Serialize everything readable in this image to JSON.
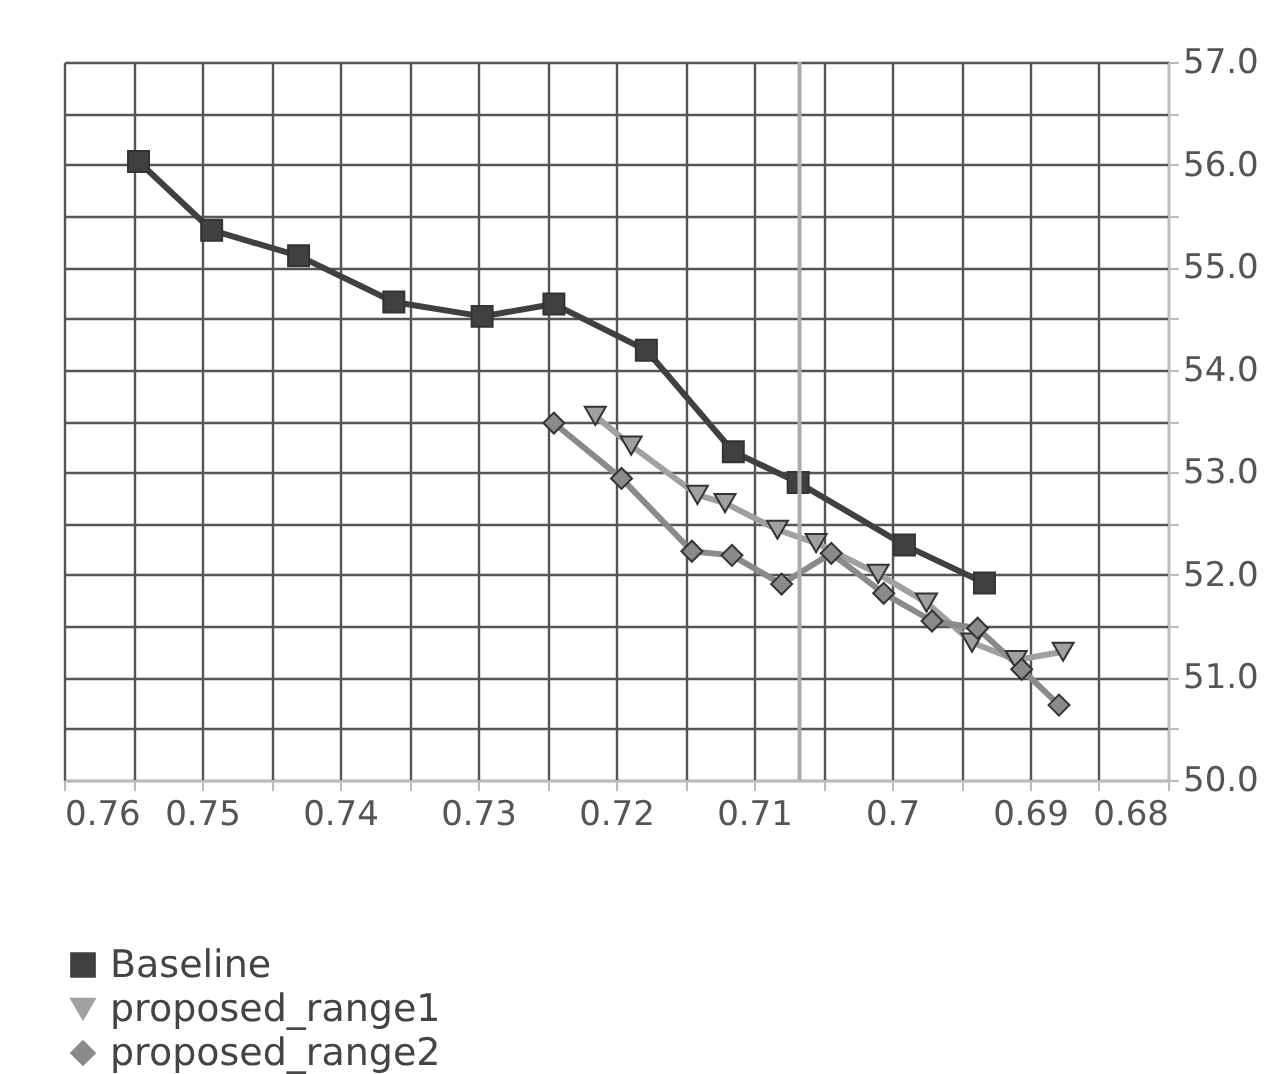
{
  "chart_data": {
    "type": "line",
    "xlim": [
      0.76,
      0.68
    ],
    "xticks": [
      0.76,
      {
        "value": 0.755,
        "label": null
      },
      0.75,
      {
        "value": 0.745,
        "label": null
      },
      0.74,
      {
        "value": 0.735,
        "label": null
      },
      0.73,
      {
        "value": 0.725,
        "label": null
      },
      0.72,
      {
        "value": 0.715,
        "label": null
      },
      0.71,
      {
        "value": 0.705,
        "label": null
      },
      0.7,
      {
        "value": 0.695,
        "label": null
      },
      0.69,
      {
        "value": 0.685,
        "label": null
      },
      0.68
    ],
    "ylim": [
      50,
      57
    ],
    "yticks": [
      {
        "value": 50,
        "label": "50.0"
      },
      {
        "value": 50.5,
        "label": null
      },
      {
        "value": 51,
        "label": "51.0"
      },
      {
        "value": 51.5,
        "label": null
      },
      {
        "value": 52,
        "label": "52.0"
      },
      {
        "value": 52.5,
        "label": null
      },
      {
        "value": 53,
        "label": "53.0"
      },
      {
        "value": 53.5,
        "label": null
      },
      {
        "value": 54,
        "label": "54.0"
      },
      {
        "value": 54.5,
        "label": null
      },
      {
        "value": 55,
        "label": "55.0"
      },
      {
        "value": 55.5,
        "label": null
      },
      {
        "value": 56,
        "label": "56.0"
      },
      {
        "value": 56.5,
        "label": null
      },
      {
        "value": 57,
        "label": "57.0"
      }
    ],
    "grid": true,
    "legend": "bottom",
    "ref_lines": [
      {
        "axis": "x",
        "value": 0.7067,
        "color": "#aaaaaa"
      }
    ],
    "series": [
      {
        "name": "Baseline",
        "color": "#404040",
        "marker": "square",
        "x": [
          0.7546,
          0.7493,
          0.743,
          0.7361,
          0.7297,
          0.7245,
          0.7178,
          0.7115,
          0.7068,
          0.6991,
          0.6933
        ],
        "values": [
          56.03,
          55.36,
          55.11,
          54.66,
          54.52,
          54.64,
          54.19,
          53.2,
          52.9,
          52.29,
          51.92
        ]
      },
      {
        "name": "proposed_range1",
        "color": "#a0a0a0",
        "marker": "triangle",
        "x": [
          0.7215,
          0.7189,
          0.7141,
          0.7121,
          0.7083,
          0.7055,
          0.701,
          0.6975,
          0.6942,
          0.691,
          0.6876
        ],
        "values": [
          53.55,
          53.26,
          52.78,
          52.7,
          52.44,
          52.31,
          52.01,
          51.73,
          51.34,
          51.17,
          51.25
        ]
      },
      {
        "name": "proposed_range2",
        "color": "#8a8a8a",
        "marker": "diamond",
        "x": [
          0.7245,
          0.7196,
          0.7145,
          0.7116,
          0.708,
          0.7044,
          0.7006,
          0.6971,
          0.6938,
          0.6906,
          0.6879
        ],
        "values": [
          53.48,
          52.94,
          52.23,
          52.19,
          51.91,
          52.21,
          51.82,
          51.55,
          51.48,
          51.08,
          50.73
        ]
      }
    ]
  }
}
